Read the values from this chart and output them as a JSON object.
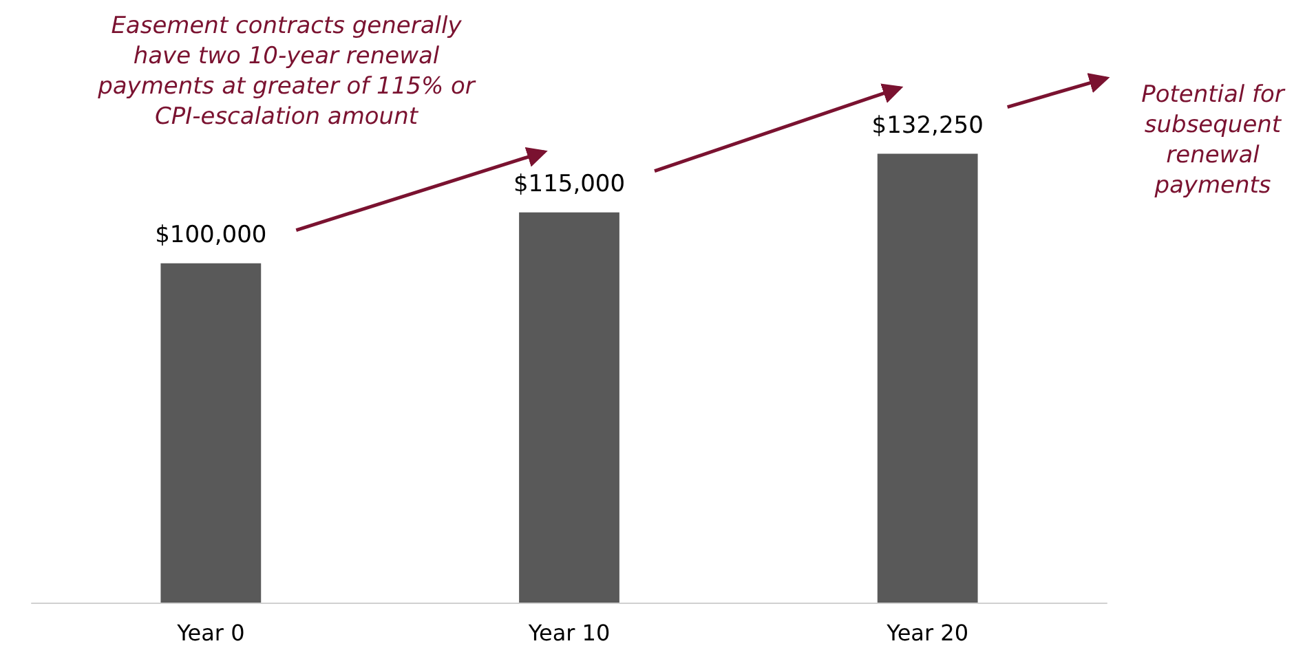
{
  "chart_data": {
    "type": "bar",
    "categories": [
      "Year 0",
      "Year 10",
      "Year 20"
    ],
    "values": [
      100000,
      115000,
      132250
    ],
    "value_labels": [
      "$100,000",
      "$115,000",
      "$132,250"
    ],
    "color": "#595959",
    "annotations": [
      "Easement contracts generally have two 10-year renewal payments at greater of 115% or CPI-escalation amount",
      "Potential for subsequent renewal payments"
    ]
  }
}
